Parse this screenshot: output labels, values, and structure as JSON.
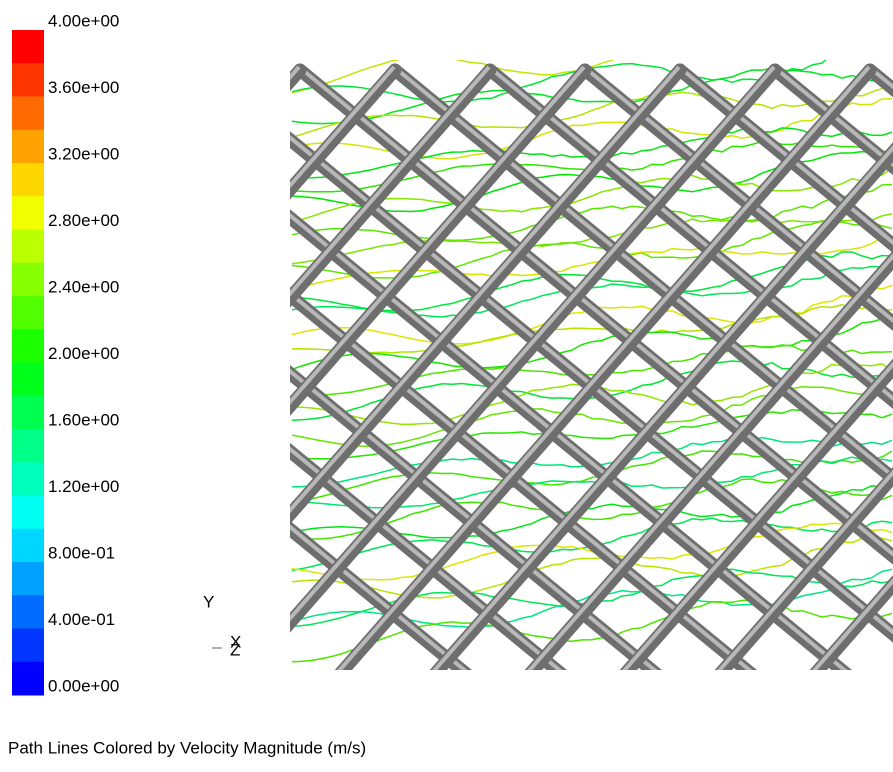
{
  "legend": {
    "labels": [
      "4.00e+00",
      "3.60e+00",
      "3.20e+00",
      "2.80e+00",
      "2.40e+00",
      "2.00e+00",
      "1.60e+00",
      "1.20e+00",
      "8.00e-01",
      "4.00e-01",
      "0.00e+00"
    ]
  },
  "axes": {
    "y": "Y",
    "x": "X",
    "z": "Z"
  },
  "caption": "Path Lines Colored by Velocity Magnitude (m/s)"
}
